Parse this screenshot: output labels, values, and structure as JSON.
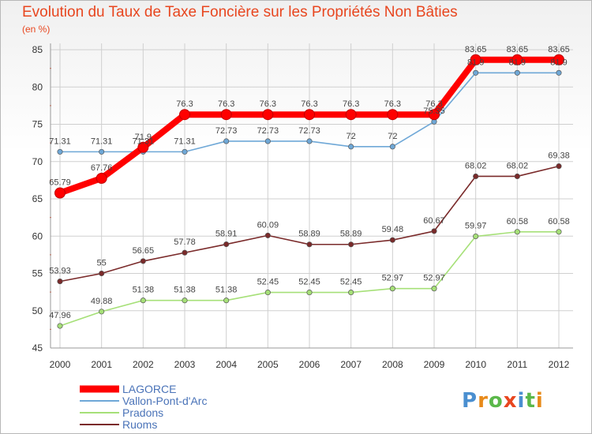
{
  "header": {
    "title": "Evolution du Taux de Taxe Foncière sur les Propriétés Non Bâties",
    "unit": "(en %)"
  },
  "logo": {
    "letters": [
      "P",
      "r",
      "o",
      "x",
      "i",
      "t",
      "i"
    ]
  },
  "colors": {
    "title": "#e8461f",
    "lagorce": "#ff0000",
    "vallon": "#6fa8d7",
    "pradons": "#a6e078",
    "ruoms": "#7a2a2a",
    "logo_letters": [
      "#4a8fd0",
      "#e88a1a",
      "#5bb84a",
      "#e8461f",
      "#4a8fd0",
      "#5bb84a",
      "#e88a1a"
    ]
  },
  "chart_data": {
    "type": "line",
    "x": [
      "2000",
      "2001",
      "2002",
      "2003",
      "2004",
      "2005",
      "2006",
      "2007",
      "2008",
      "2009",
      "2010",
      "2011",
      "2012"
    ],
    "ylim": [
      45,
      85
    ],
    "yticks": [
      "45",
      "50",
      "55",
      "60",
      "65",
      "70",
      "75",
      "80",
      "85"
    ],
    "grid": true,
    "legend_position": "bottom-left",
    "series": [
      {
        "name": "LAGORCE",
        "values": [
          65.79,
          67.76,
          71.9,
          76.3,
          76.3,
          76.3,
          76.3,
          76.3,
          76.3,
          76.3,
          83.65,
          83.65,
          83.65
        ],
        "labels": [
          "65.79",
          "67.76",
          "71.9",
          "76.3",
          "76.3",
          "76.3",
          "76.3",
          "76.3",
          "76.3",
          "76.3",
          "83.65",
          "83.65",
          "83.65"
        ]
      },
      {
        "name": "Vallon-Pont-d'Arc",
        "values": [
          71.31,
          71.31,
          71.31,
          71.31,
          72.73,
          72.73,
          72.73,
          72,
          72,
          75.35,
          81.9,
          81.9,
          81.9
        ],
        "labels": [
          "71.31",
          "71.31",
          "71.31",
          "71.31",
          "72.73",
          "72.73",
          "72.73",
          "72",
          "72",
          "75.35",
          "81.9",
          "81.9",
          "81.9"
        ]
      },
      {
        "name": "Pradons",
        "values": [
          47.96,
          49.88,
          51.38,
          51.38,
          51.38,
          52.45,
          52.45,
          52.45,
          52.97,
          52.97,
          59.97,
          60.58,
          60.58
        ],
        "labels": [
          "47.96",
          "49.88",
          "51.38",
          "51.38",
          "51.38",
          "52.45",
          "52.45",
          "52.45",
          "52.97",
          "52.97",
          "59.97",
          "60.58",
          "60.58"
        ]
      },
      {
        "name": "Ruoms",
        "values": [
          53.93,
          55,
          56.65,
          57.78,
          58.91,
          60.09,
          58.89,
          58.89,
          59.48,
          60.67,
          68.02,
          68.02,
          69.38
        ],
        "labels": [
          "53.93",
          "55",
          "56.65",
          "57.78",
          "58.91",
          "60.09",
          "58.89",
          "58.89",
          "59.48",
          "60.67",
          "68.02",
          "68.02",
          "69.38"
        ]
      }
    ]
  }
}
